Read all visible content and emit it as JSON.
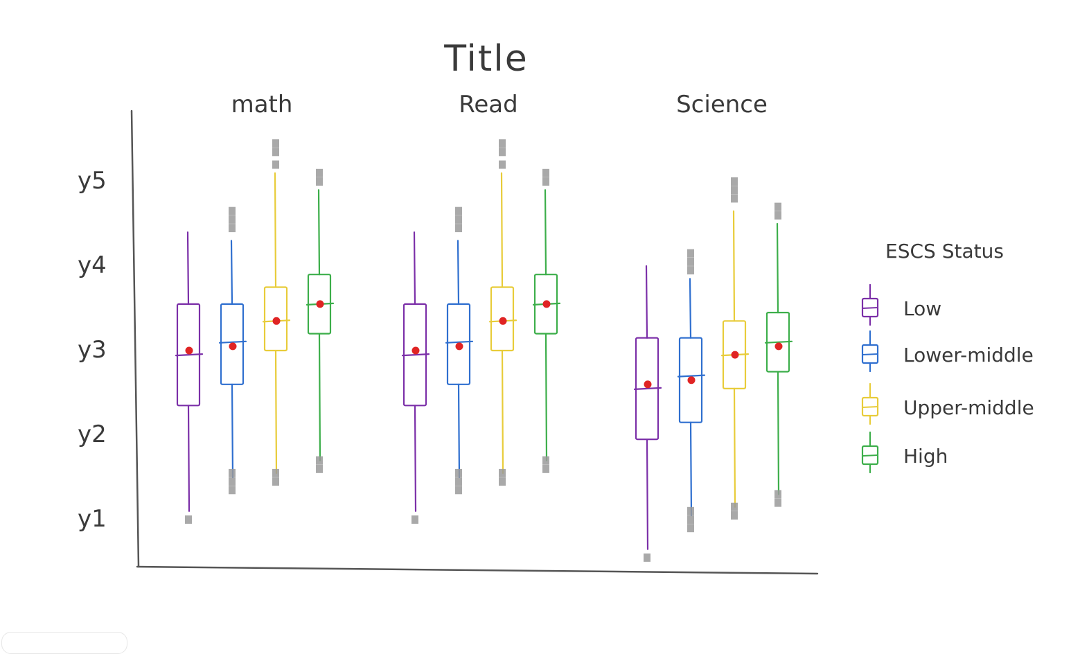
{
  "chart_data": {
    "type": "box",
    "title": "Title",
    "groups": [
      "math",
      "Read",
      "Science"
    ],
    "y_ticks": [
      "y5",
      "y4",
      "y3",
      "y2",
      "y1"
    ],
    "legend": {
      "title": "ESCS Status",
      "position": "right",
      "entries": [
        {
          "name": "Low",
          "color": "#7b2fa8"
        },
        {
          "name": "Lower-middle",
          "color": "#2f6fcf"
        },
        {
          "name": "Upper-middle",
          "color": "#e8cc3a"
        },
        {
          "name": "High",
          "color": "#3cae4a"
        }
      ]
    },
    "ylim": [
      0.5,
      5.5
    ],
    "mean_color": "#e02424",
    "outlier_color": "#9a9a9a",
    "boxes": [
      {
        "group": "math",
        "series": "Low",
        "whisker_low": 1.1,
        "q1": 2.35,
        "median": 2.95,
        "q3": 3.55,
        "whisker_high": 4.4,
        "mean": 3.0,
        "outliers": [
          1.0
        ]
      },
      {
        "group": "math",
        "series": "Lower-middle",
        "whisker_low": 1.5,
        "q1": 2.6,
        "median": 3.1,
        "q3": 3.55,
        "whisker_high": 4.3,
        "mean": 3.05,
        "outliers": [
          1.35,
          1.45,
          1.55,
          4.45,
          4.55,
          4.65
        ]
      },
      {
        "group": "math",
        "series": "Upper-middle",
        "whisker_low": 1.55,
        "q1": 3.0,
        "median": 3.35,
        "q3": 3.75,
        "whisker_high": 5.1,
        "mean": 3.35,
        "outliers": [
          1.45,
          1.55,
          5.2,
          5.35,
          5.45
        ]
      },
      {
        "group": "math",
        "series": "High",
        "whisker_low": 1.7,
        "q1": 3.2,
        "median": 3.55,
        "q3": 3.9,
        "whisker_high": 4.9,
        "mean": 3.55,
        "outliers": [
          1.6,
          1.7,
          5.0,
          5.1
        ]
      },
      {
        "group": "Read",
        "series": "Low",
        "whisker_low": 1.1,
        "q1": 2.35,
        "median": 2.95,
        "q3": 3.55,
        "whisker_high": 4.4,
        "mean": 3.0,
        "outliers": [
          1.0
        ]
      },
      {
        "group": "Read",
        "series": "Lower-middle",
        "whisker_low": 1.5,
        "q1": 2.6,
        "median": 3.1,
        "q3": 3.55,
        "whisker_high": 4.3,
        "mean": 3.05,
        "outliers": [
          1.35,
          1.45,
          1.55,
          4.45,
          4.55,
          4.65
        ]
      },
      {
        "group": "Read",
        "series": "Upper-middle",
        "whisker_low": 1.55,
        "q1": 3.0,
        "median": 3.35,
        "q3": 3.75,
        "whisker_high": 5.1,
        "mean": 3.35,
        "outliers": [
          1.45,
          1.55,
          5.2,
          5.35,
          5.45
        ]
      },
      {
        "group": "Read",
        "series": "High",
        "whisker_low": 1.7,
        "q1": 3.2,
        "median": 3.55,
        "q3": 3.9,
        "whisker_high": 4.9,
        "mean": 3.55,
        "outliers": [
          1.6,
          1.7,
          5.0,
          5.1
        ]
      },
      {
        "group": "Science",
        "series": "Low",
        "whisker_low": 0.65,
        "q1": 1.95,
        "median": 2.55,
        "q3": 3.15,
        "whisker_high": 4.0,
        "mean": 2.6,
        "outliers": [
          0.55
        ]
      },
      {
        "group": "Science",
        "series": "Lower-middle",
        "whisker_low": 1.05,
        "q1": 2.15,
        "median": 2.7,
        "q3": 3.15,
        "whisker_high": 3.85,
        "mean": 2.65,
        "outliers": [
          0.9,
          1.0,
          1.1,
          3.95,
          4.05,
          4.15
        ]
      },
      {
        "group": "Science",
        "series": "Upper-middle",
        "whisker_low": 1.15,
        "q1": 2.55,
        "median": 2.95,
        "q3": 3.35,
        "whisker_high": 4.65,
        "mean": 2.95,
        "outliers": [
          1.05,
          1.15,
          4.8,
          4.9,
          5.0
        ]
      },
      {
        "group": "Science",
        "series": "High",
        "whisker_low": 1.3,
        "q1": 2.75,
        "median": 3.1,
        "q3": 3.45,
        "whisker_high": 4.5,
        "mean": 3.05,
        "outliers": [
          1.2,
          1.3,
          4.6,
          4.7
        ]
      }
    ]
  }
}
